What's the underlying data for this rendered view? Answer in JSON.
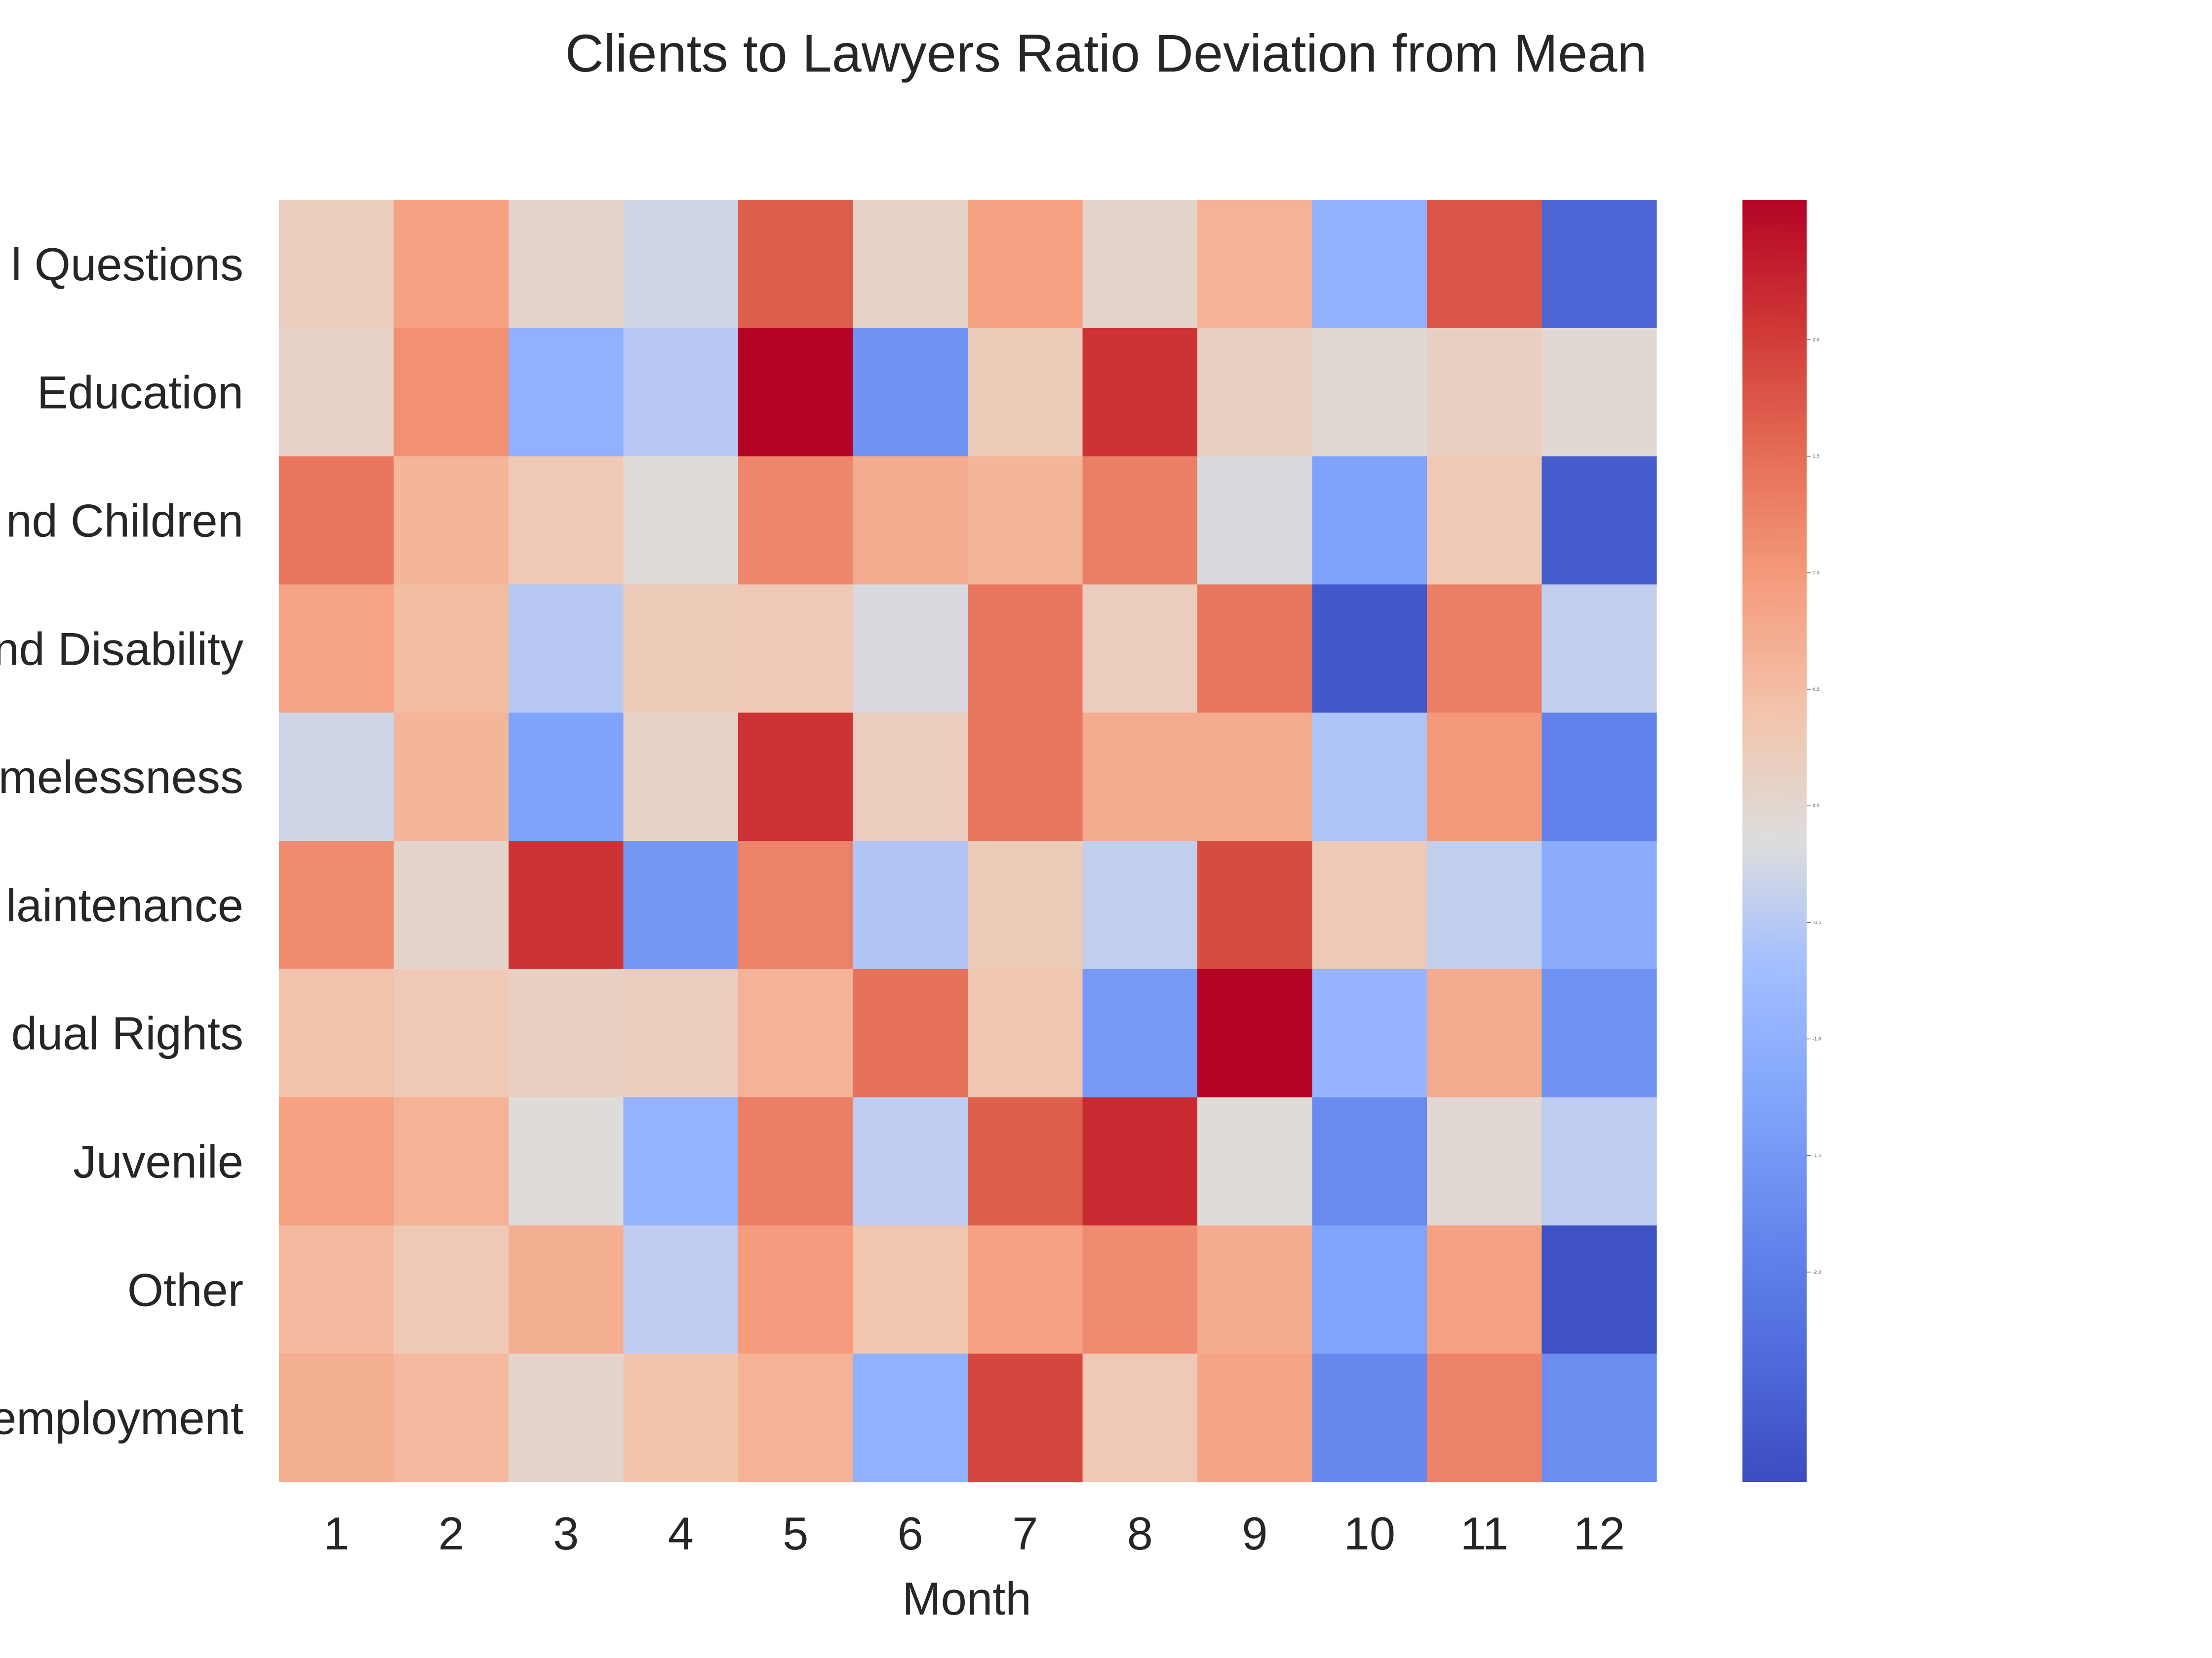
{
  "chart_data": {
    "type": "heatmap",
    "title": "Clients to Lawyers Ratio Deviation from Mean",
    "xlabel": "Month",
    "ylabel": "",
    "x": [
      "1",
      "2",
      "3",
      "4",
      "5",
      "6",
      "7",
      "8",
      "9",
      "10",
      "11",
      "12"
    ],
    "y": [
      "l Questions",
      "Education",
      "nd Children",
      "nd Disability",
      "melessness",
      "laintenance",
      "dual Rights",
      "Juvenile",
      "Other",
      "employment"
    ],
    "values": [
      [
        0.2,
        0.9,
        0.05,
        -0.3,
        1.65,
        0.1,
        0.9,
        0.05,
        0.65,
        -1.0,
        1.75,
        -2.45
      ],
      [
        0.1,
        1.1,
        -1.0,
        -0.5,
        2.6,
        -1.6,
        0.25,
        2.1,
        0.15,
        -0.05,
        0.15,
        -0.05
      ],
      [
        1.4,
        0.6,
        0.3,
        -0.1,
        1.2,
        0.75,
        0.6,
        1.3,
        -0.2,
        -1.3,
        0.3,
        -2.6
      ],
      [
        0.85,
        0.5,
        -0.5,
        0.25,
        0.3,
        -0.2,
        1.4,
        0.2,
        1.4,
        -2.7,
        1.3,
        -0.4
      ],
      [
        -0.3,
        0.6,
        -1.3,
        0.1,
        2.1,
        0.2,
        1.4,
        0.75,
        0.75,
        -0.6,
        1.0,
        -1.9
      ],
      [
        1.15,
        0.05,
        2.1,
        -1.5,
        1.25,
        -0.55,
        0.25,
        -0.4,
        1.85,
        0.3,
        -0.4,
        -1.1
      ],
      [
        0.4,
        0.3,
        0.15,
        0.2,
        0.65,
        1.45,
        0.35,
        -1.45,
        2.6,
        -0.9,
        0.75,
        -1.6
      ],
      [
        0.9,
        0.65,
        -0.1,
        -0.95,
        1.3,
        -0.45,
        1.65,
        2.2,
        -0.1,
        -1.75,
        -0.05,
        -0.45
      ],
      [
        0.55,
        0.3,
        0.7,
        -0.45,
        0.95,
        0.35,
        0.9,
        1.15,
        0.75,
        -1.25,
        0.9,
        -2.8
      ],
      [
        0.7,
        0.55,
        0.05,
        0.4,
        0.65,
        -1.0,
        1.9,
        0.3,
        0.85,
        -1.8,
        1.25,
        -1.7
      ]
    ],
    "vmin": -2.9,
    "vmax": 2.6,
    "colormap": "coolwarm",
    "colorbar": {
      "ticks": [
        -2.0,
        -1.5,
        -1.0,
        -0.5,
        0.0,
        0.5,
        1.0,
        1.5,
        2.0
      ],
      "tick_labels": [
        "-2.0",
        "-1.5",
        "-1.0",
        "-0.5",
        "0.0",
        "0.5",
        "1.0",
        "1.5",
        "2.0"
      ]
    },
    "grid": false,
    "legend": "colorbar-right"
  }
}
